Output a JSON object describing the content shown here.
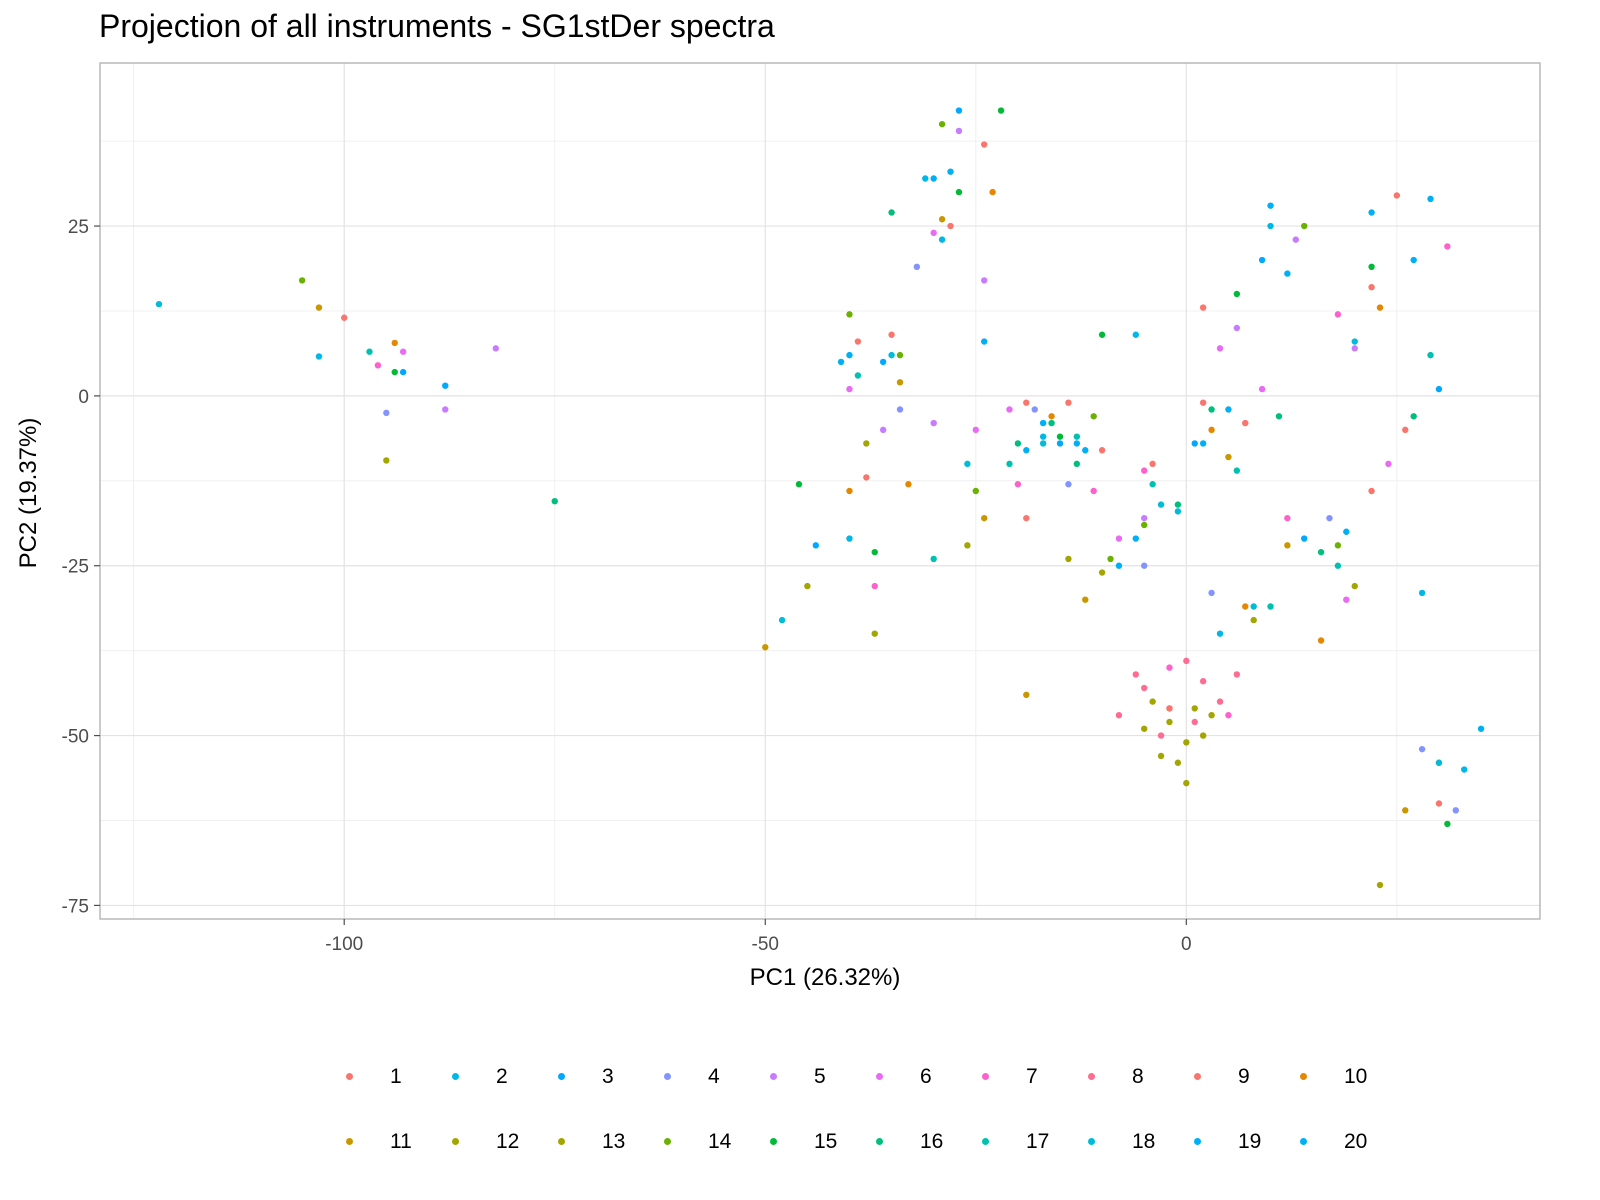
{
  "chart_data": {
    "type": "scatter",
    "title": "Projection of all instruments - SG1stDer spectra",
    "xlabel": "PC1 (26.32%)",
    "ylabel": "PC2 (19.37%)",
    "xlim": [
      -129,
      42
    ],
    "ylim": [
      -77,
      49
    ],
    "x_ticks": [
      -100,
      -50,
      0
    ],
    "x_tick_labels": [
      "-100",
      "-50",
      "0"
    ],
    "y_ticks": [
      25,
      0,
      -25,
      -50,
      -75
    ],
    "y_tick_labels": [
      "25",
      "0",
      "-25",
      "-50",
      "-75"
    ],
    "grid": true,
    "legend_position": "bottom",
    "series": [
      {
        "name": "1",
        "color": "#F8766D",
        "points": [
          [
            -100,
            11.5
          ],
          [
            -24,
            37
          ],
          [
            -35,
            9
          ],
          [
            2,
            -1
          ],
          [
            -19,
            -1
          ],
          [
            22,
            -14
          ],
          [
            25,
            29.5
          ],
          [
            -38,
            -12
          ],
          [
            30,
            -60
          ],
          [
            -10,
            -8
          ]
        ]
      },
      {
        "name": "2",
        "color": "#00B8E7",
        "points": [
          [
            -103,
            5.8
          ],
          [
            -31,
            32
          ],
          [
            -29,
            23
          ],
          [
            -6,
            9
          ],
          [
            10,
            25
          ],
          [
            28,
            -29
          ],
          [
            -40,
            -21
          ],
          [
            4,
            -35
          ],
          [
            33,
            -55
          ],
          [
            -17,
            -6
          ]
        ]
      },
      {
        "name": "3",
        "color": "#00A9FF",
        "points": [
          [
            -88,
            1.5
          ],
          [
            -93,
            3.5
          ],
          [
            -27,
            42
          ],
          [
            -36,
            5
          ],
          [
            -15,
            -7
          ],
          [
            9,
            20
          ],
          [
            30,
            1
          ],
          [
            -44,
            -22
          ],
          [
            1,
            -7
          ],
          [
            14,
            -21
          ]
        ]
      },
      {
        "name": "4",
        "color": "#8494FF",
        "points": [
          [
            -95,
            -2.5
          ],
          [
            -32,
            19
          ],
          [
            -18,
            -2
          ],
          [
            -5,
            -25
          ],
          [
            17,
            -18
          ],
          [
            28,
            -52
          ],
          [
            -34,
            -2
          ],
          [
            3,
            -29
          ],
          [
            32,
            -61
          ],
          [
            -14,
            -13
          ]
        ]
      },
      {
        "name": "5",
        "color": "#C77CFF",
        "points": [
          [
            -82,
            7
          ],
          [
            -88,
            -2
          ],
          [
            -24,
            17
          ],
          [
            -27,
            39
          ],
          [
            6,
            10
          ],
          [
            20,
            7
          ],
          [
            -36,
            -5
          ],
          [
            -5,
            -18
          ],
          [
            -30,
            -4
          ],
          [
            13,
            23
          ]
        ]
      },
      {
        "name": "6",
        "color": "#E76BF3",
        "points": [
          [
            -93,
            6.5
          ],
          [
            -30,
            24
          ],
          [
            -25,
            -5
          ],
          [
            -8,
            -21
          ],
          [
            9,
            1
          ],
          [
            24,
            -10
          ],
          [
            -40,
            1
          ],
          [
            19,
            -30
          ],
          [
            -21,
            -2
          ],
          [
            4,
            7
          ]
        ]
      },
      {
        "name": "7",
        "color": "#FF61CC",
        "points": [
          [
            -96,
            4.5
          ],
          [
            -20,
            -13
          ],
          [
            -5,
            -11
          ],
          [
            5,
            -47
          ],
          [
            18,
            12
          ],
          [
            -37,
            -28
          ],
          [
            -11,
            -14
          ],
          [
            -2,
            -40
          ],
          [
            31,
            22
          ],
          [
            12,
            -18
          ]
        ]
      },
      {
        "name": "8",
        "color": "#FF6C91",
        "points": [
          [
            -5,
            -43
          ],
          [
            -2,
            -46
          ],
          [
            2,
            -42
          ],
          [
            4,
            -45
          ],
          [
            -8,
            -47
          ],
          [
            0,
            -39
          ],
          [
            -3,
            -50
          ],
          [
            6,
            -41
          ],
          [
            -6,
            -41
          ],
          [
            1,
            -48
          ]
        ]
      },
      {
        "name": "9",
        "color": "#F8766D",
        "points": [
          [
            -28,
            25
          ],
          [
            -4,
            -10
          ],
          [
            7,
            -4
          ],
          [
            22,
            16
          ],
          [
            -39,
            8
          ],
          [
            -14,
            -1
          ],
          [
            2,
            13
          ],
          [
            -19,
            -18
          ],
          [
            26,
            -5
          ],
          [
            -2,
            -46
          ]
        ]
      },
      {
        "name": "10",
        "color": "#E58700",
        "points": [
          [
            -94,
            7.8
          ],
          [
            -23,
            30
          ],
          [
            -16,
            -3
          ],
          [
            3,
            -5
          ],
          [
            23,
            13
          ],
          [
            -40,
            -14
          ],
          [
            -33,
            -13
          ],
          [
            7,
            -31
          ],
          [
            30,
            -54
          ],
          [
            16,
            -36
          ]
        ]
      },
      {
        "name": "11",
        "color": "#C99800",
        "points": [
          [
            -103,
            13
          ],
          [
            -19,
            -44
          ],
          [
            -34,
            2
          ],
          [
            -24,
            -18
          ],
          [
            5,
            -9
          ],
          [
            26,
            -61
          ],
          [
            -50,
            -37
          ],
          [
            -12,
            -30
          ],
          [
            12,
            -22
          ],
          [
            -29,
            26
          ]
        ]
      },
      {
        "name": "12",
        "color": "#A3A500",
        "points": [
          [
            -95,
            -9.5
          ],
          [
            -38,
            -7
          ],
          [
            -10,
            -26
          ],
          [
            8,
            -33
          ],
          [
            -37,
            -35
          ],
          [
            -26,
            -22
          ],
          [
            20,
            -28
          ],
          [
            -45,
            -28
          ],
          [
            -14,
            -24
          ],
          [
            23,
            -72
          ]
        ]
      },
      {
        "name": "13",
        "color": "#A3A500",
        "points": [
          [
            -2,
            -48
          ],
          [
            0,
            -51
          ],
          [
            -3,
            -53
          ],
          [
            1,
            -46
          ],
          [
            -4,
            -45
          ],
          [
            2,
            -50
          ],
          [
            -1,
            -54
          ],
          [
            -5,
            -49
          ],
          [
            3,
            -47
          ],
          [
            0,
            -57
          ]
        ]
      },
      {
        "name": "14",
        "color": "#6BB100",
        "points": [
          [
            -105,
            17
          ],
          [
            -29,
            40
          ],
          [
            -40,
            12
          ],
          [
            -5,
            -19
          ],
          [
            -9,
            -24
          ],
          [
            18,
            -22
          ],
          [
            -25,
            -14
          ],
          [
            -11,
            -3
          ],
          [
            14,
            25
          ],
          [
            -34,
            6
          ]
        ]
      },
      {
        "name": "15",
        "color": "#00BA38",
        "points": [
          [
            -94,
            3.5
          ],
          [
            -22,
            42
          ],
          [
            -27,
            30
          ],
          [
            -15,
            -6
          ],
          [
            6,
            15
          ],
          [
            22,
            19
          ],
          [
            -46,
            -13
          ],
          [
            -10,
            9
          ],
          [
            31,
            -63
          ],
          [
            -37,
            -23
          ]
        ]
      },
      {
        "name": "16",
        "color": "#00BF7D",
        "points": [
          [
            -75,
            -15.5
          ],
          [
            -16,
            -4
          ],
          [
            3,
            -2
          ],
          [
            27,
            -3
          ],
          [
            -35,
            27
          ],
          [
            -20,
            -7
          ],
          [
            -1,
            -16
          ],
          [
            16,
            -23
          ],
          [
            -13,
            -10
          ],
          [
            11,
            -3
          ]
        ]
      },
      {
        "name": "17",
        "color": "#00C0AF",
        "points": [
          [
            -97,
            6.5
          ],
          [
            -30,
            -24
          ],
          [
            -13,
            -6
          ],
          [
            6,
            -11
          ],
          [
            18,
            -25
          ],
          [
            -39,
            3
          ],
          [
            -21,
            -10
          ],
          [
            10,
            -31
          ],
          [
            29,
            6
          ],
          [
            -4,
            -13
          ]
        ]
      },
      {
        "name": "18",
        "color": "#00BCD8",
        "points": [
          [
            -122,
            13.5
          ],
          [
            -17,
            -7
          ],
          [
            -3,
            -16
          ],
          [
            8,
            -31
          ],
          [
            30,
            -54
          ],
          [
            -48,
            -33
          ],
          [
            -26,
            -10
          ],
          [
            -1,
            -17
          ],
          [
            20,
            8
          ],
          [
            -35,
            6
          ]
        ]
      },
      {
        "name": "19",
        "color": "#00B0F6",
        "points": [
          [
            -30,
            32
          ],
          [
            -19,
            -8
          ],
          [
            -6,
            -21
          ],
          [
            10,
            28
          ],
          [
            27,
            20
          ],
          [
            -41,
            5
          ],
          [
            -12,
            -8
          ],
          [
            5,
            -2
          ],
          [
            22,
            27
          ],
          [
            -24,
            8
          ]
        ]
      },
      {
        "name": "20",
        "color": "#00B0F6",
        "points": [
          [
            -28,
            33
          ],
          [
            -17,
            -4
          ],
          [
            2,
            -7
          ],
          [
            12,
            18
          ],
          [
            29,
            29
          ],
          [
            -40,
            6
          ],
          [
            -8,
            -25
          ],
          [
            35,
            -49
          ],
          [
            19,
            -20
          ],
          [
            -13,
            -7
          ]
        ]
      }
    ]
  }
}
